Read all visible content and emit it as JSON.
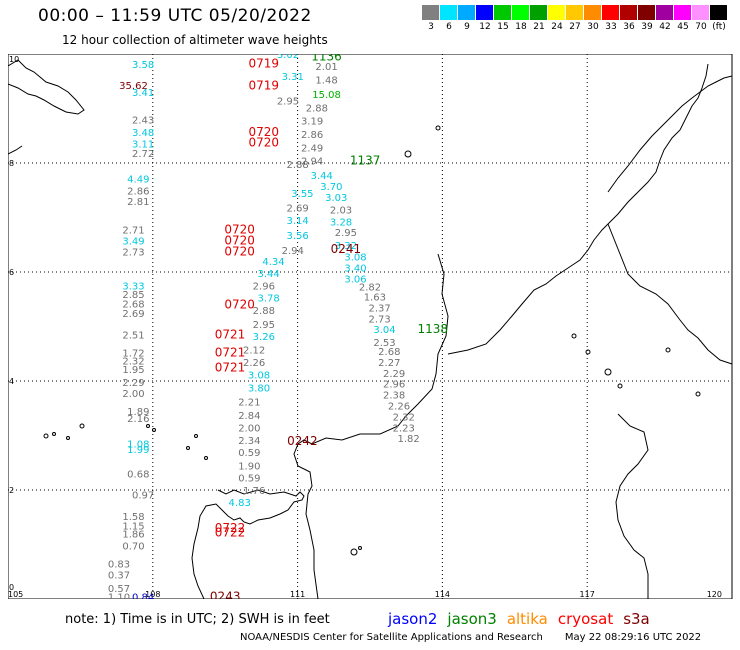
{
  "header": {
    "title": "00:00 – 11:59 UTC 05/20/2022",
    "subtitle": "12 hour collection of altimeter wave heights"
  },
  "color_scale": {
    "labels": [
      "3",
      "6",
      "9",
      "12",
      "15",
      "18",
      "21",
      "24",
      "27",
      "30",
      "33",
      "36",
      "39",
      "42",
      "45",
      "70",
      "(ft)"
    ],
    "colors": [
      "#808080",
      "#00e5ff",
      "#00aaff",
      "#0000ff",
      "#00c800",
      "#00ff00",
      "#00a000",
      "#ffff00",
      "#ffc800",
      "#ff8c00",
      "#ff0000",
      "#b00000",
      "#800000",
      "#a000a0",
      "#ff00ff",
      "#ff90ff",
      "#000000"
    ]
  },
  "map": {
    "x_ticks": [
      "105",
      "108",
      "111",
      "114",
      "117",
      "120"
    ],
    "y_ticks": [
      "0",
      "2",
      "4",
      "6",
      "8",
      "10"
    ],
    "lon_range": [
      105,
      120
    ],
    "lat_range": [
      0,
      10
    ]
  },
  "observations": [
    {
      "lon": 110.8,
      "lat": 10.0,
      "text": "3.02",
      "color": "#00c8e0"
    },
    {
      "lon": 111.6,
      "lat": 9.95,
      "text": "1136",
      "color": "#008000",
      "pass": true
    },
    {
      "lon": 107.8,
      "lat": 9.82,
      "text": "3.58",
      "color": "#00c8e0"
    },
    {
      "lon": 110.3,
      "lat": 9.83,
      "text": "0719",
      "color": "#e00000",
      "pass": true
    },
    {
      "lon": 111.6,
      "lat": 9.78,
      "text": "2.01",
      "color": "#707070"
    },
    {
      "lon": 110.9,
      "lat": 9.6,
      "text": "3.31",
      "color": "#00c8e0"
    },
    {
      "lon": 111.6,
      "lat": 9.53,
      "text": "1.48",
      "color": "#707070"
    },
    {
      "lon": 107.6,
      "lat": 9.43,
      "text": "35.62",
      "color": "#800000"
    },
    {
      "lon": 110.3,
      "lat": 9.42,
      "text": "0719",
      "color": "#e00000",
      "pass": true
    },
    {
      "lon": 107.8,
      "lat": 9.3,
      "text": "3.41",
      "color": "#00c8e0"
    },
    {
      "lon": 111.6,
      "lat": 9.27,
      "text": "15.08",
      "color": "#00b000"
    },
    {
      "lon": 110.8,
      "lat": 9.15,
      "text": "2.95",
      "color": "#707070"
    },
    {
      "lon": 111.4,
      "lat": 9.02,
      "text": "2.88",
      "color": "#707070"
    },
    {
      "lon": 107.8,
      "lat": 8.8,
      "text": "2.43",
      "color": "#707070"
    },
    {
      "lon": 111.3,
      "lat": 8.78,
      "text": "3.19",
      "color": "#707070"
    },
    {
      "lon": 107.8,
      "lat": 8.57,
      "text": "3.48",
      "color": "#00c8e0"
    },
    {
      "lon": 110.3,
      "lat": 8.57,
      "text": "0720",
      "color": "#e00000",
      "pass": true
    },
    {
      "lon": 111.3,
      "lat": 8.53,
      "text": "2.86",
      "color": "#707070"
    },
    {
      "lon": 107.8,
      "lat": 8.36,
      "text": "3.11",
      "color": "#00c8e0"
    },
    {
      "lon": 110.3,
      "lat": 8.38,
      "text": "0720",
      "color": "#e00000",
      "pass": true
    },
    {
      "lon": 111.3,
      "lat": 8.28,
      "text": "2.49",
      "color": "#707070"
    },
    {
      "lon": 107.8,
      "lat": 8.18,
      "text": "2.72",
      "color": "#707070"
    },
    {
      "lon": 111.3,
      "lat": 8.05,
      "text": "2.94",
      "color": "#707070"
    },
    {
      "lon": 112.4,
      "lat": 8.05,
      "text": "1137",
      "color": "#008000",
      "pass": true
    },
    {
      "lon": 111.0,
      "lat": 7.98,
      "text": "2.88",
      "color": "#707070"
    },
    {
      "lon": 111.5,
      "lat": 7.78,
      "text": "3.44",
      "color": "#00c8e0"
    },
    {
      "lon": 107.7,
      "lat": 7.72,
      "text": "4.49",
      "color": "#00c8e0"
    },
    {
      "lon": 111.7,
      "lat": 7.58,
      "text": "3.70",
      "color": "#00c8e0"
    },
    {
      "lon": 107.7,
      "lat": 7.5,
      "text": "2.86",
      "color": "#707070"
    },
    {
      "lon": 111.1,
      "lat": 7.45,
      "text": "3.55",
      "color": "#00c8e0"
    },
    {
      "lon": 111.8,
      "lat": 7.38,
      "text": "3.03",
      "color": "#00c8e0"
    },
    {
      "lon": 107.7,
      "lat": 7.3,
      "text": "2.81",
      "color": "#707070"
    },
    {
      "lon": 111.0,
      "lat": 7.18,
      "text": "2.69",
      "color": "#707070"
    },
    {
      "lon": 111.9,
      "lat": 7.15,
      "text": "2.03",
      "color": "#707070"
    },
    {
      "lon": 111.0,
      "lat": 6.95,
      "text": "3.14",
      "color": "#00c8e0"
    },
    {
      "lon": 111.9,
      "lat": 6.93,
      "text": "3.28",
      "color": "#00c8e0"
    },
    {
      "lon": 107.6,
      "lat": 6.78,
      "text": "2.71",
      "color": "#707070"
    },
    {
      "lon": 109.8,
      "lat": 6.78,
      "text": "0720",
      "color": "#e00000",
      "pass": true
    },
    {
      "lon": 112.0,
      "lat": 6.73,
      "text": "2.95",
      "color": "#707070"
    },
    {
      "lon": 111.0,
      "lat": 6.68,
      "text": "3.56",
      "color": "#00c8e0"
    },
    {
      "lon": 107.6,
      "lat": 6.58,
      "text": "3.49",
      "color": "#00c8e0"
    },
    {
      "lon": 109.8,
      "lat": 6.58,
      "text": "0720",
      "color": "#e00000",
      "pass": true
    },
    {
      "lon": 112.0,
      "lat": 6.5,
      "text": "3.32",
      "color": "#00c8e0"
    },
    {
      "lon": 110.9,
      "lat": 6.4,
      "text": "2.94",
      "color": "#707070"
    },
    {
      "lon": 112.0,
      "lat": 6.42,
      "text": "0241",
      "color": "#800000",
      "pass": true
    },
    {
      "lon": 107.6,
      "lat": 6.38,
      "text": "2.73",
      "color": "#707070"
    },
    {
      "lon": 109.8,
      "lat": 6.38,
      "text": "0720",
      "color": "#e00000",
      "pass": true
    },
    {
      "lon": 112.2,
      "lat": 6.28,
      "text": "3.08",
      "color": "#00c8e0"
    },
    {
      "lon": 110.5,
      "lat": 6.2,
      "text": "4.34",
      "color": "#00c8e0"
    },
    {
      "lon": 112.2,
      "lat": 6.08,
      "text": "3.40",
      "color": "#00c8e0"
    },
    {
      "lon": 110.4,
      "lat": 5.98,
      "text": "3.44",
      "color": "#00c8e0"
    },
    {
      "lon": 112.2,
      "lat": 5.88,
      "text": "3.06",
      "color": "#00c8e0"
    },
    {
      "lon": 107.6,
      "lat": 5.75,
      "text": "3.33",
      "color": "#00c8e0"
    },
    {
      "lon": 110.3,
      "lat": 5.75,
      "text": "2.96",
      "color": "#707070"
    },
    {
      "lon": 112.5,
      "lat": 5.73,
      "text": "2.82",
      "color": "#707070"
    },
    {
      "lon": 107.6,
      "lat": 5.6,
      "text": "2.85",
      "color": "#707070"
    },
    {
      "lon": 110.4,
      "lat": 5.53,
      "text": "3.78",
      "color": "#00c8e0"
    },
    {
      "lon": 112.6,
      "lat": 5.55,
      "text": "1.63",
      "color": "#707070"
    },
    {
      "lon": 107.6,
      "lat": 5.42,
      "text": "2.68",
      "color": "#707070"
    },
    {
      "lon": 109.8,
      "lat": 5.4,
      "text": "0720",
      "color": "#e00000",
      "pass": true
    },
    {
      "lon": 112.7,
      "lat": 5.35,
      "text": "2.37",
      "color": "#707070"
    },
    {
      "lon": 107.6,
      "lat": 5.25,
      "text": "2.69",
      "color": "#707070"
    },
    {
      "lon": 110.3,
      "lat": 5.3,
      "text": "2.88",
      "color": "#707070"
    },
    {
      "lon": 112.7,
      "lat": 5.15,
      "text": "2.73",
      "color": "#707070"
    },
    {
      "lon": 110.3,
      "lat": 5.05,
      "text": "2.95",
      "color": "#707070"
    },
    {
      "lon": 112.8,
      "lat": 4.95,
      "text": "3.04",
      "color": "#00c8e0"
    },
    {
      "lon": 113.8,
      "lat": 4.95,
      "text": "1138",
      "color": "#008000",
      "pass": true
    },
    {
      "lon": 107.6,
      "lat": 4.85,
      "text": "2.51",
      "color": "#707070"
    },
    {
      "lon": 109.6,
      "lat": 4.85,
      "text": "0721",
      "color": "#e00000",
      "pass": true
    },
    {
      "lon": 110.3,
      "lat": 4.83,
      "text": "3.26",
      "color": "#00c8e0"
    },
    {
      "lon": 112.8,
      "lat": 4.72,
      "text": "2.53",
      "color": "#707070"
    },
    {
      "lon": 107.6,
      "lat": 4.52,
      "text": "1.72",
      "color": "#707070"
    },
    {
      "lon": 109.6,
      "lat": 4.52,
      "text": "0721",
      "color": "#e00000",
      "pass": true
    },
    {
      "lon": 110.1,
      "lat": 4.58,
      "text": "2.12",
      "color": "#707070"
    },
    {
      "lon": 112.9,
      "lat": 4.55,
      "text": "2.68",
      "color": "#707070"
    },
    {
      "lon": 107.6,
      "lat": 4.38,
      "text": "2.32",
      "color": "#707070"
    },
    {
      "lon": 112.9,
      "lat": 4.35,
      "text": "2.27",
      "color": "#707070"
    },
    {
      "lon": 107.6,
      "lat": 4.22,
      "text": "1.95",
      "color": "#707070"
    },
    {
      "lon": 109.6,
      "lat": 4.25,
      "text": "0721",
      "color": "#e00000",
      "pass": true
    },
    {
      "lon": 110.1,
      "lat": 4.35,
      "text": "2.26",
      "color": "#707070"
    },
    {
      "lon": 110.2,
      "lat": 4.12,
      "text": "3.08",
      "color": "#00c8e0"
    },
    {
      "lon": 113.0,
      "lat": 4.15,
      "text": "2.29",
      "color": "#707070"
    },
    {
      "lon": 107.6,
      "lat": 3.98,
      "text": "2.29",
      "color": "#707070"
    },
    {
      "lon": 110.2,
      "lat": 3.88,
      "text": "3.80",
      "color": "#00c8e0"
    },
    {
      "lon": 113.0,
      "lat": 3.95,
      "text": "2.96",
      "color": "#707070"
    },
    {
      "lon": 107.6,
      "lat": 3.78,
      "text": "2.00",
      "color": "#707070"
    },
    {
      "lon": 113.0,
      "lat": 3.75,
      "text": "2.38",
      "color": "#707070"
    },
    {
      "lon": 110.0,
      "lat": 3.62,
      "text": "2.21",
      "color": "#707070"
    },
    {
      "lon": 113.1,
      "lat": 3.55,
      "text": "2.26",
      "color": "#707070"
    },
    {
      "lon": 107.7,
      "lat": 3.45,
      "text": "1.89",
      "color": "#707070"
    },
    {
      "lon": 110.0,
      "lat": 3.38,
      "text": "2.84",
      "color": "#707070"
    },
    {
      "lon": 113.2,
      "lat": 3.35,
      "text": "2.32",
      "color": "#707070"
    },
    {
      "lon": 107.7,
      "lat": 3.32,
      "text": "2.16",
      "color": "#707070"
    },
    {
      "lon": 110.0,
      "lat": 3.15,
      "text": "2.00",
      "color": "#707070"
    },
    {
      "lon": 113.2,
      "lat": 3.15,
      "text": "2.23",
      "color": "#707070"
    },
    {
      "lon": 113.3,
      "lat": 2.95,
      "text": "1.82",
      "color": "#707070"
    },
    {
      "lon": 110.0,
      "lat": 2.92,
      "text": "2.34",
      "color": "#707070"
    },
    {
      "lon": 111.1,
      "lat": 2.9,
      "text": "0242",
      "color": "#800000",
      "pass": true
    },
    {
      "lon": 107.7,
      "lat": 2.85,
      "text": "1.08",
      "color": "#00c8e0"
    },
    {
      "lon": 107.7,
      "lat": 2.75,
      "text": "1.99",
      "color": "#00c8e0"
    },
    {
      "lon": 110.0,
      "lat": 2.7,
      "text": "0.59",
      "color": "#707070"
    },
    {
      "lon": 110.0,
      "lat": 2.45,
      "text": "1.90",
      "color": "#707070"
    },
    {
      "lon": 107.7,
      "lat": 2.3,
      "text": "0.68",
      "color": "#707070"
    },
    {
      "lon": 110.0,
      "lat": 2.23,
      "text": "0.59",
      "color": "#707070"
    },
    {
      "lon": 110.1,
      "lat": 2.0,
      "text": "1.76",
      "color": "#707070"
    },
    {
      "lon": 107.8,
      "lat": 1.92,
      "text": "0.97",
      "color": "#707070"
    },
    {
      "lon": 109.8,
      "lat": 1.78,
      "text": "4.83",
      "color": "#00c8e0"
    },
    {
      "lon": 107.6,
      "lat": 1.52,
      "text": "1.58",
      "color": "#707070"
    },
    {
      "lon": 107.6,
      "lat": 1.35,
      "text": "1.15",
      "color": "#707070"
    },
    {
      "lon": 109.6,
      "lat": 1.3,
      "text": "0722",
      "color": "#e00000",
      "pass": true
    },
    {
      "lon": 107.6,
      "lat": 1.2,
      "text": "1.86",
      "color": "#707070"
    },
    {
      "lon": 109.6,
      "lat": 1.22,
      "text": "0722",
      "color": "#e00000",
      "pass": true
    },
    {
      "lon": 107.6,
      "lat": 0.98,
      "text": "0.70",
      "color": "#707070"
    },
    {
      "lon": 107.3,
      "lat": 0.65,
      "text": "0.83",
      "color": "#707070"
    },
    {
      "lon": 107.3,
      "lat": 0.45,
      "text": "0.37",
      "color": "#707070"
    },
    {
      "lon": 107.3,
      "lat": 0.2,
      "text": "0.57",
      "color": "#707070"
    },
    {
      "lon": 107.3,
      "lat": 0.05,
      "text": "1.10",
      "color": "#707070"
    },
    {
      "lon": 107.8,
      "lat": 0.05,
      "text": "0.84",
      "color": "#0000c8"
    },
    {
      "lon": 109.5,
      "lat": 0.05,
      "text": "0243",
      "color": "#800000",
      "pass": true
    }
  ],
  "footer": {
    "note": "note:  1) Time is in UTC;  2) SWH is in feet",
    "satellites": [
      {
        "name": "jason2",
        "color": "#0000ff"
      },
      {
        "name": "jason3",
        "color": "#008000"
      },
      {
        "name": "altika",
        "color": "#ff8c00"
      },
      {
        "name": "cryosat",
        "color": "#ff0000"
      },
      {
        "name": "s3a",
        "color": "#800000"
      }
    ],
    "credit": "NOAA/NESDIS Center for Satellite Applications and Research",
    "date": "May 22 08:29:16 UTC 2022"
  }
}
